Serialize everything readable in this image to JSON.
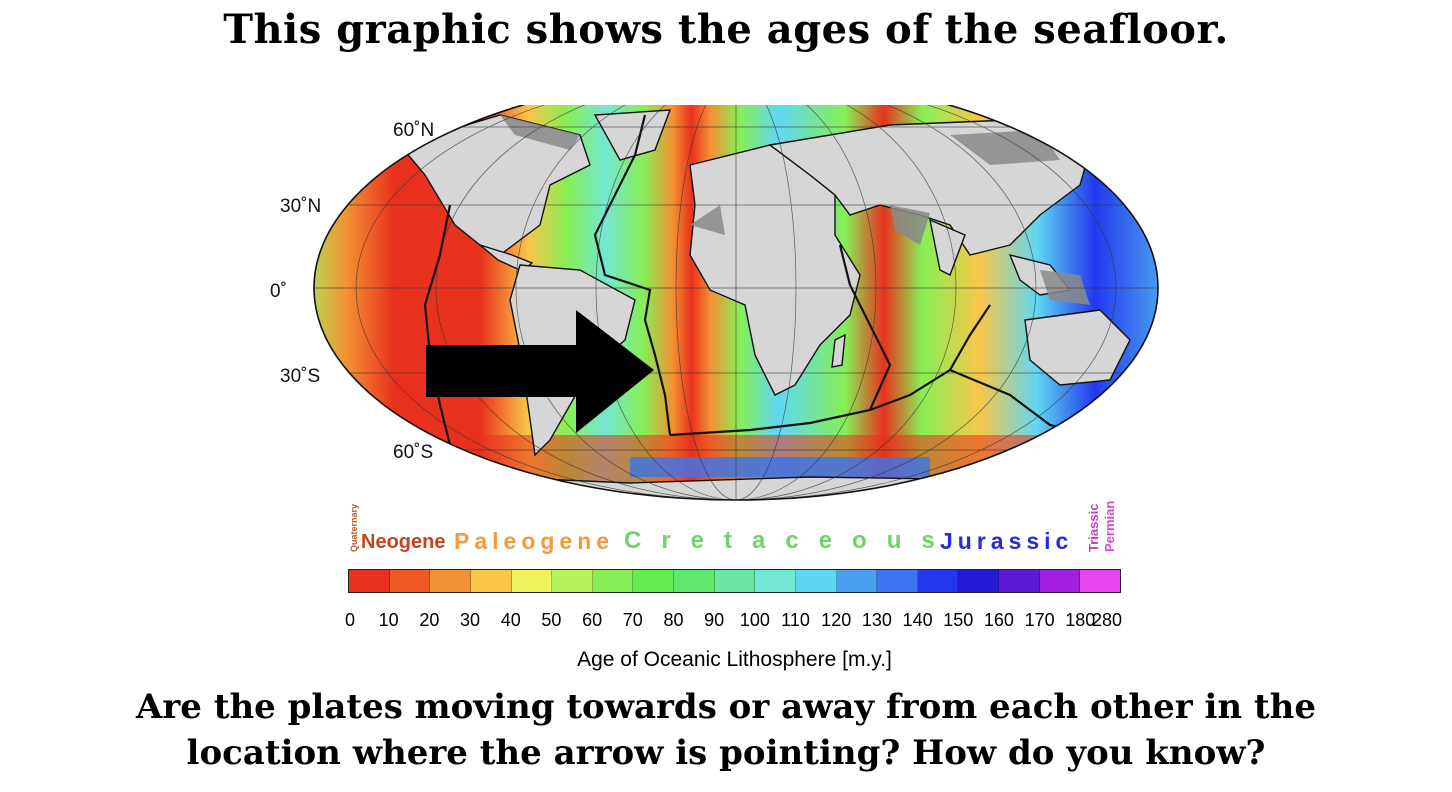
{
  "title": "This graphic shows the ages of the seafloor.",
  "map": {
    "lat_labels": [
      "60˚N",
      "30˚N",
      "0˚",
      "30˚S",
      "60˚S"
    ],
    "arrow": "black-arrow-pointing-right",
    "colors": {
      "land": "#d6d6d6",
      "continental_shelf": "#8a8a8a",
      "ridge": "#e0301e",
      "plate_boundary": "#111111"
    }
  },
  "legend": {
    "periods": {
      "quaternary": "Quaternary",
      "neogene": "Neogene",
      "paleogene": "Paleogene",
      "cretaceous": "Cretaceous",
      "jurassic": "Jurassic",
      "triassic": "Triassic",
      "permian": "Permian"
    },
    "period_colors": {
      "quaternary": "#b15a2a",
      "neogene": "#c8421c",
      "paleogene": "#f29a3c",
      "cretaceous": "#6ed36a",
      "jurassic": "#2a2adb",
      "triassic": "#c43fc4",
      "permian": "#d946d9"
    },
    "scale_colors": [
      "#e8321e",
      "#ee5a24",
      "#f39234",
      "#f9c64a",
      "#eef35c",
      "#b7f25a",
      "#86ef55",
      "#62ec4f",
      "#5fe86d",
      "#6ae6a0",
      "#74e7d2",
      "#5fd7f3",
      "#4a9ff0",
      "#3a74ee",
      "#2338ee",
      "#2518d6",
      "#5b1ad8",
      "#a21fe0",
      "#e645ef"
    ],
    "tick_labels": [
      "0",
      "10",
      "20",
      "30",
      "40",
      "50",
      "60",
      "70",
      "80",
      "90",
      "100",
      "110",
      "120",
      "130",
      "140",
      "150",
      "160",
      "170",
      "180",
      "280"
    ],
    "axis_label": "Age of Oceanic Lithosphere [m.y.]"
  },
  "question": {
    "line1": "Are the plates moving towards or away from each other in the",
    "line2": "location where the arrow is pointing? How do you know?"
  }
}
